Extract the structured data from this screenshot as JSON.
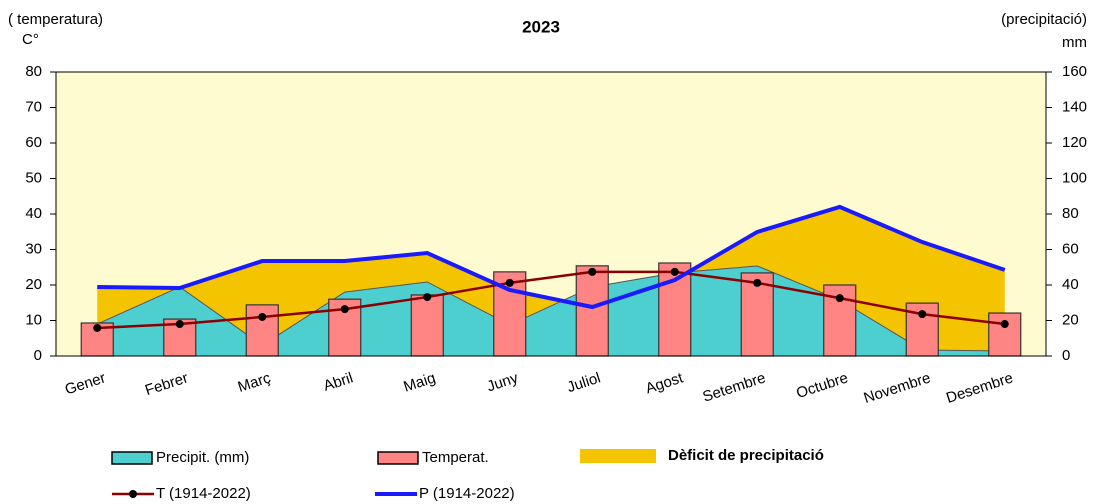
{
  "chart_data": {
    "type": "combo",
    "title": "2023",
    "y_label": [
      "( temperatura)",
      "C°"
    ],
    "y2_label": [
      "(precipitació)",
      "mm"
    ],
    "categories": [
      "Gener",
      "Febrer",
      "Març",
      "Abril",
      "Maig",
      "Juny",
      "Juliol",
      "Agost",
      "Setembre",
      "Octubre",
      "Novembre",
      "Desembre"
    ],
    "ylim": [
      0,
      80
    ],
    "yticks": [
      0,
      10,
      20,
      30,
      40,
      50,
      60,
      70,
      80
    ],
    "y2lim": [
      0,
      160
    ],
    "y2ticks": [
      0,
      20,
      40,
      60,
      80,
      100,
      120,
      140,
      160
    ],
    "deficit_label": "Dèficit de precipitació",
    "deficit_color": "#f5c400",
    "background": "#fffbd0",
    "series": [
      {
        "name": "Precipit. (mm)",
        "type": "area",
        "axis": "y2",
        "color": "#4ecfcf",
        "values": [
          18,
          38.9,
          6,
          36,
          41.7,
          17.5,
          38.9,
          46.8,
          50.7,
          31.5,
          3.4,
          2.8
        ]
      },
      {
        "name": "Temperat.",
        "type": "bar",
        "color": "#ff8585",
        "values": [
          9.3,
          10.4,
          14.4,
          16,
          17.2,
          23.7,
          25.4,
          26.2,
          23.4,
          20,
          14.9,
          12.1
        ]
      },
      {
        "name": "T (1914-2022)",
        "type": "line",
        "color": "#8b0000",
        "values": [
          7.9,
          9,
          11,
          13.2,
          16.6,
          20.6,
          23.7,
          23.7,
          20.6,
          16.3,
          11.8,
          9
        ]
      },
      {
        "name": "P (1914-2022)",
        "type": "line",
        "axis": "y2",
        "color": "#1a1aff",
        "values": [
          38.9,
          38.3,
          53.5,
          53.5,
          58,
          37.2,
          27.6,
          42.8,
          69.9,
          84,
          64.2,
          48.5
        ]
      }
    ]
  }
}
